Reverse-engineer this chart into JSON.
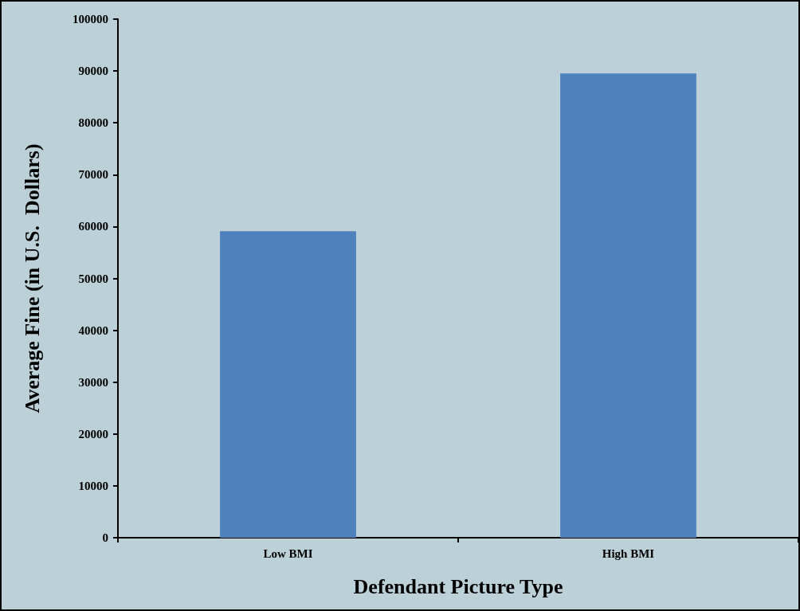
{
  "chart_data": {
    "type": "bar",
    "xlabel": "Defendant Picture Type",
    "ylabel": "Average Fine (in U.S.  Dollars)",
    "categories": [
      "Low BMI",
      "High BMI"
    ],
    "values": [
      59100,
      89500
    ],
    "color": "#4f81bd",
    "ylim": [
      0,
      100000
    ],
    "yticks": [
      0,
      10000,
      20000,
      30000,
      40000,
      50000,
      60000,
      70000,
      80000,
      90000,
      100000
    ],
    "grid": false
  }
}
